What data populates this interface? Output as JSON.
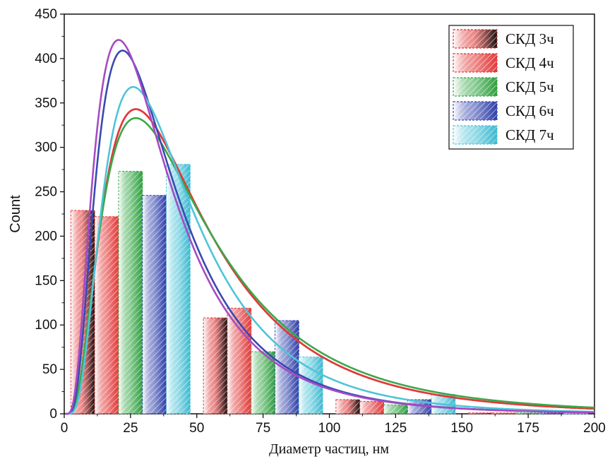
{
  "chart_data": {
    "type": "bar",
    "title": "",
    "xlabel": "Диаметр частиц, нм",
    "ylabel": "Count",
    "xlim": [
      0,
      200
    ],
    "ylim": [
      0,
      450
    ],
    "x_ticks": [
      0,
      25,
      50,
      75,
      100,
      125,
      150,
      175,
      200
    ],
    "y_ticks": [
      0,
      50,
      100,
      150,
      200,
      250,
      300,
      350,
      400,
      450
    ],
    "bin_width": 45,
    "bin_starts": [
      2.5,
      52.5,
      102.5,
      152.5
    ],
    "legend_position": "top-right",
    "grid": false,
    "series": [
      {
        "name": "СКД 3ч",
        "color": "#e03030",
        "dark": "#111111",
        "values": [
          229,
          108,
          16,
          1
        ],
        "curve": {
          "peak_x": 27,
          "peak_y": 343,
          "sigma": 0.7
        }
      },
      {
        "name": "СКД 4ч",
        "color": "#e23a3a",
        "dark": "#e23a3a",
        "values": [
          222,
          119,
          14,
          1
        ],
        "curve": {
          "peak_x": 27,
          "peak_y": 343,
          "sigma": 0.7
        }
      },
      {
        "name": "СКД 5ч",
        "color": "#3aa84a",
        "dark": "#2e9e3e",
        "values": [
          273,
          70,
          10,
          1
        ],
        "curve": {
          "peak_x": 27,
          "peak_y": 333,
          "sigma": 0.72
        }
      },
      {
        "name": "СКД 6ч",
        "color": "#3a4ab0",
        "dark": "#2f3fa8",
        "values": [
          246,
          105,
          16,
          1
        ],
        "curve": {
          "peak_x": 22,
          "peak_y": 409,
          "sigma": 0.66
        }
      },
      {
        "name": "СКД 7ч",
        "color": "#4fc4d8",
        "dark": "#3bb8d0",
        "values": [
          281,
          64,
          22,
          1
        ],
        "curve": {
          "peak_x": 26,
          "peak_y": 368,
          "sigma": 0.64
        }
      }
    ],
    "extra_curve": {
      "color": "#a64bc4",
      "peak_x": 20.5,
      "peak_y": 421,
      "sigma": 0.68
    }
  }
}
